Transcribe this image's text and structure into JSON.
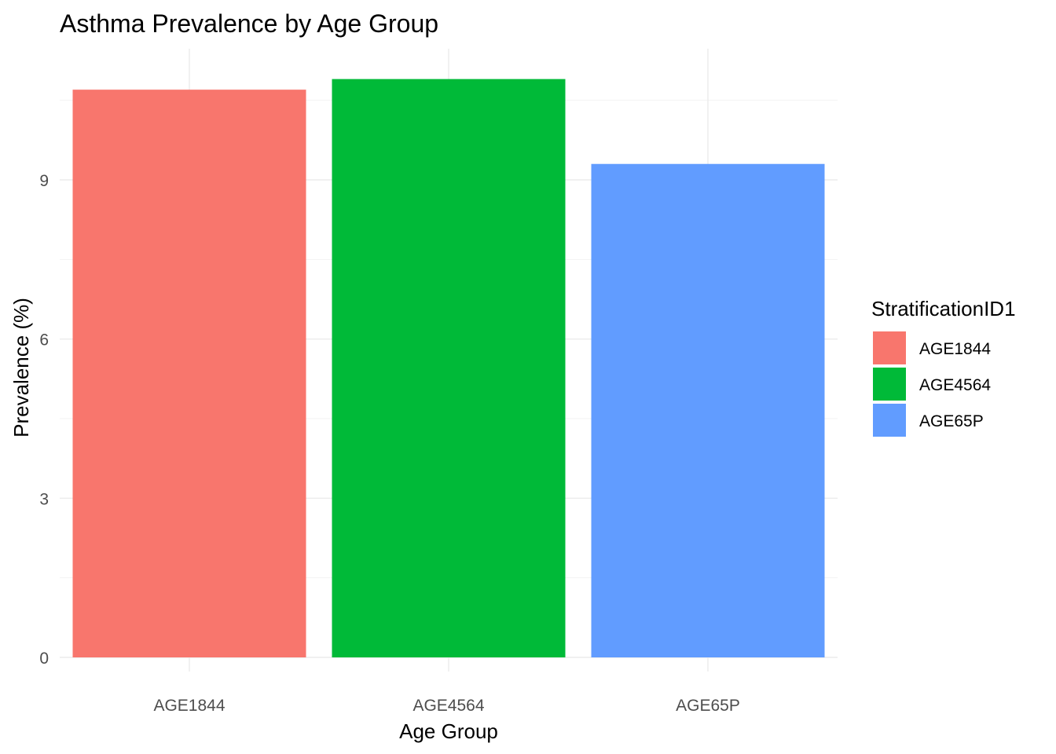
{
  "chart_data": {
    "type": "bar",
    "title": "Asthma Prevalence by Age Group",
    "xlabel": "Age Group",
    "ylabel": "Prevalence (%)",
    "categories": [
      "AGE1844",
      "AGE4564",
      "AGE65P"
    ],
    "values": [
      10.7,
      10.9,
      9.3
    ],
    "colors": [
      "#F8766D",
      "#00BA38",
      "#619CFF"
    ],
    "ylim": [
      0,
      11
    ],
    "yticks": [
      0,
      3,
      6,
      9
    ],
    "grid": true,
    "legend": {
      "title": "StratificationID1",
      "position": "right",
      "entries": [
        "AGE1844",
        "AGE4564",
        "AGE65P"
      ]
    }
  }
}
